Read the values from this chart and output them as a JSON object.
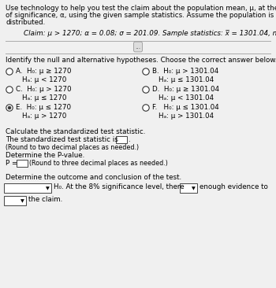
{
  "title_line1": "Use technology to help you test the claim about the population mean, μ, at the given level",
  "title_line2": "of significance, α, using the given sample statistics. Assume the population is normally",
  "title_line3": "distributed.",
  "claim_text": "Claim: μ > 1270; α = 0.08; σ = 201.09. Sample statistics: x̅ = 1301.04, n = 275",
  "section1": "Identify the null and alternative hypotheses. Choose the correct answer below.",
  "optA_line1": "H₀: μ ≥ 1270",
  "optA_line2": "Hₐ: μ < 1270",
  "optB_line1": "H₀: μ > 1301.04",
  "optB_line2": "Hₐ: μ ≤ 1301.04",
  "optC_line1": "H₀: μ > 1270",
  "optC_line2": "Hₐ: μ ≤ 1270",
  "optD_line1": "H₀: μ ≥ 1301.04",
  "optD_line2": "Hₐ: μ < 1301.04",
  "optE_line1": "H₀: μ ≤ 1270",
  "optE_line2": "Hₐ: μ > 1270",
  "optF_line1": "H₀: μ ≤ 1301.04",
  "optF_line2": "Hₐ: μ > 1301.04",
  "section2": "Calculate the standardized test statistic.",
  "stat_line1": "The standardized test statistic is",
  "stat_line2": "(Round to two decimal places as needed.)",
  "section3": "Determine the P-value.",
  "pval_prefix": "P =",
  "pval_suffix": "(Round to three decimal places as needed.)",
  "section4": "Determine the outcome and conclusion of the test.",
  "conc_mid": "H₀. At the 8% significance level, there",
  "conc_end": "enough evidence to",
  "conc_line2": "the claim.",
  "bg_color": "#f0f0f0",
  "text_color": "#000000",
  "fs_main": 6.8,
  "fs_small": 6.3
}
